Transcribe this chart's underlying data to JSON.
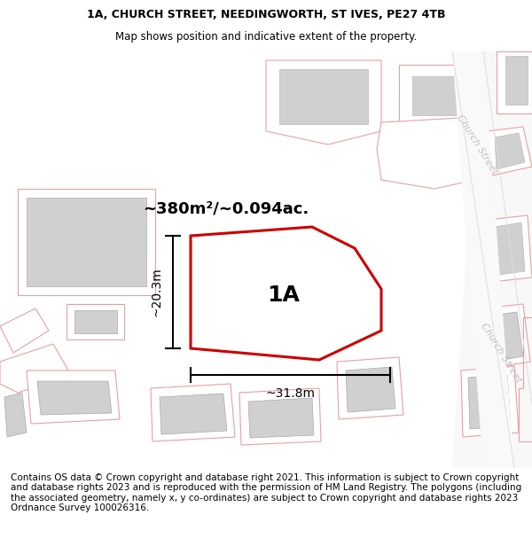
{
  "title_line1": "1A, CHURCH STREET, NEEDINGWORTH, ST IVES, PE27 4TB",
  "title_line2": "Map shows position and indicative extent of the property.",
  "footer_text": "Contains OS data © Crown copyright and database right 2021. This information is subject to Crown copyright and database rights 2023 and is reproduced with the permission of HM Land Registry. The polygons (including the associated geometry, namely x, y co-ordinates) are subject to Crown copyright and database rights 2023 Ordnance Survey 100026316.",
  "bg_color": "#ffffff",
  "title_fontsize": 9.0,
  "footer_fontsize": 7.5,
  "area_label": "~380m²/~0.094ac.",
  "property_label": "1A",
  "dim_width": "~31.8m",
  "dim_height": "~20.3m",
  "street_label": "Church Street",
  "pink_edge": "#e8a0a0",
  "gray_fill": "#d0d0d0",
  "red_outline": "#cc0000",
  "dim_color": "#000000"
}
